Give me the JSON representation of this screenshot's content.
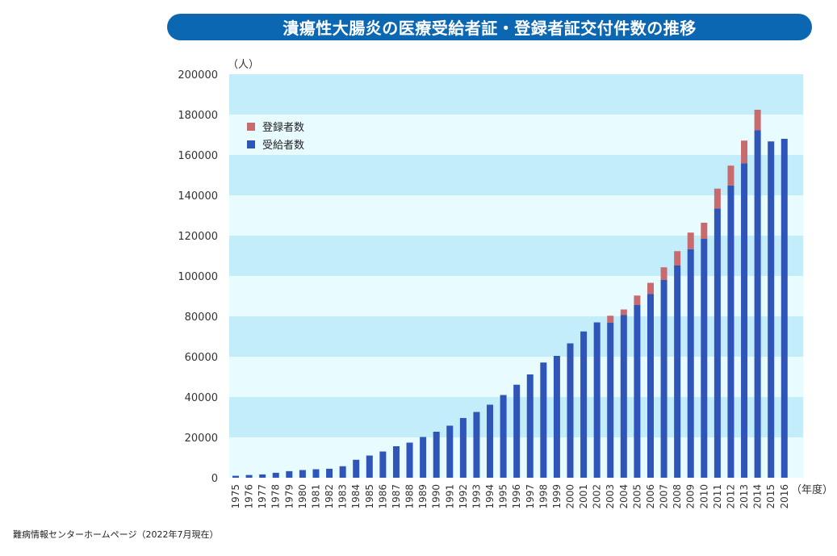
{
  "chart_data": {
    "type": "bar",
    "stacked": true,
    "title": "潰瘍性大腸炎の医療受給者証・登録者証交付件数の推移",
    "ylabel": "（人）",
    "xlabel": "（年度）",
    "ylim": [
      0,
      200000
    ],
    "yticks": [
      "0",
      "20000",
      "40000",
      "60000",
      "80000",
      "100000",
      "120000",
      "140000",
      "160000",
      "180000",
      "200000"
    ],
    "categories": [
      "1975",
      "1976",
      "1977",
      "1978",
      "1979",
      "1980",
      "1981",
      "1982",
      "1983",
      "1984",
      "1985",
      "1986",
      "1987",
      "1988",
      "1989",
      "1990",
      "1991",
      "1992",
      "1993",
      "1994",
      "1995",
      "1996",
      "1997",
      "1998",
      "1999",
      "2000",
      "2001",
      "2002",
      "2003",
      "2004",
      "2005",
      "2006",
      "2007",
      "2008",
      "2009",
      "2010",
      "2011",
      "2012",
      "2013",
      "2014",
      "2015",
      "2016"
    ],
    "series": [
      {
        "name": "受給者数",
        "color": "#2f55b9",
        "values": [
          965,
          1350,
          1630,
          2450,
          3250,
          3800,
          4200,
          4450,
          5700,
          8900,
          11000,
          13000,
          15600,
          17400,
          20200,
          22800,
          25800,
          29600,
          32600,
          36200,
          41000,
          46100,
          51200,
          57100,
          60400,
          66600,
          72500,
          77000,
          76800,
          80600,
          85600,
          91000,
          98000,
          105200,
          113300,
          118400,
          133500,
          144900,
          155900,
          172200,
          166700,
          168000
        ]
      },
      {
        "name": "登録者数",
        "color": "#c86b6e",
        "values": [
          0,
          0,
          0,
          0,
          0,
          0,
          0,
          0,
          0,
          0,
          0,
          0,
          0,
          0,
          0,
          0,
          0,
          0,
          0,
          0,
          0,
          0,
          0,
          0,
          0,
          0,
          0,
          0,
          3500,
          2800,
          4700,
          5600,
          6300,
          7100,
          8200,
          8000,
          9800,
          9800,
          11200,
          10200,
          0,
          0
        ]
      }
    ],
    "legend": [
      {
        "label": "登録者数",
        "color": "#c86b6e"
      },
      {
        "label": "受給者数",
        "color": "#2f55b9"
      }
    ],
    "band_colors": [
      "#e8fbfe",
      "#c4edfb"
    ],
    "grid": true,
    "legend_position": "top-left"
  },
  "footer": {
    "source": "難病情報センターホームページ（2022年7月現在）"
  }
}
